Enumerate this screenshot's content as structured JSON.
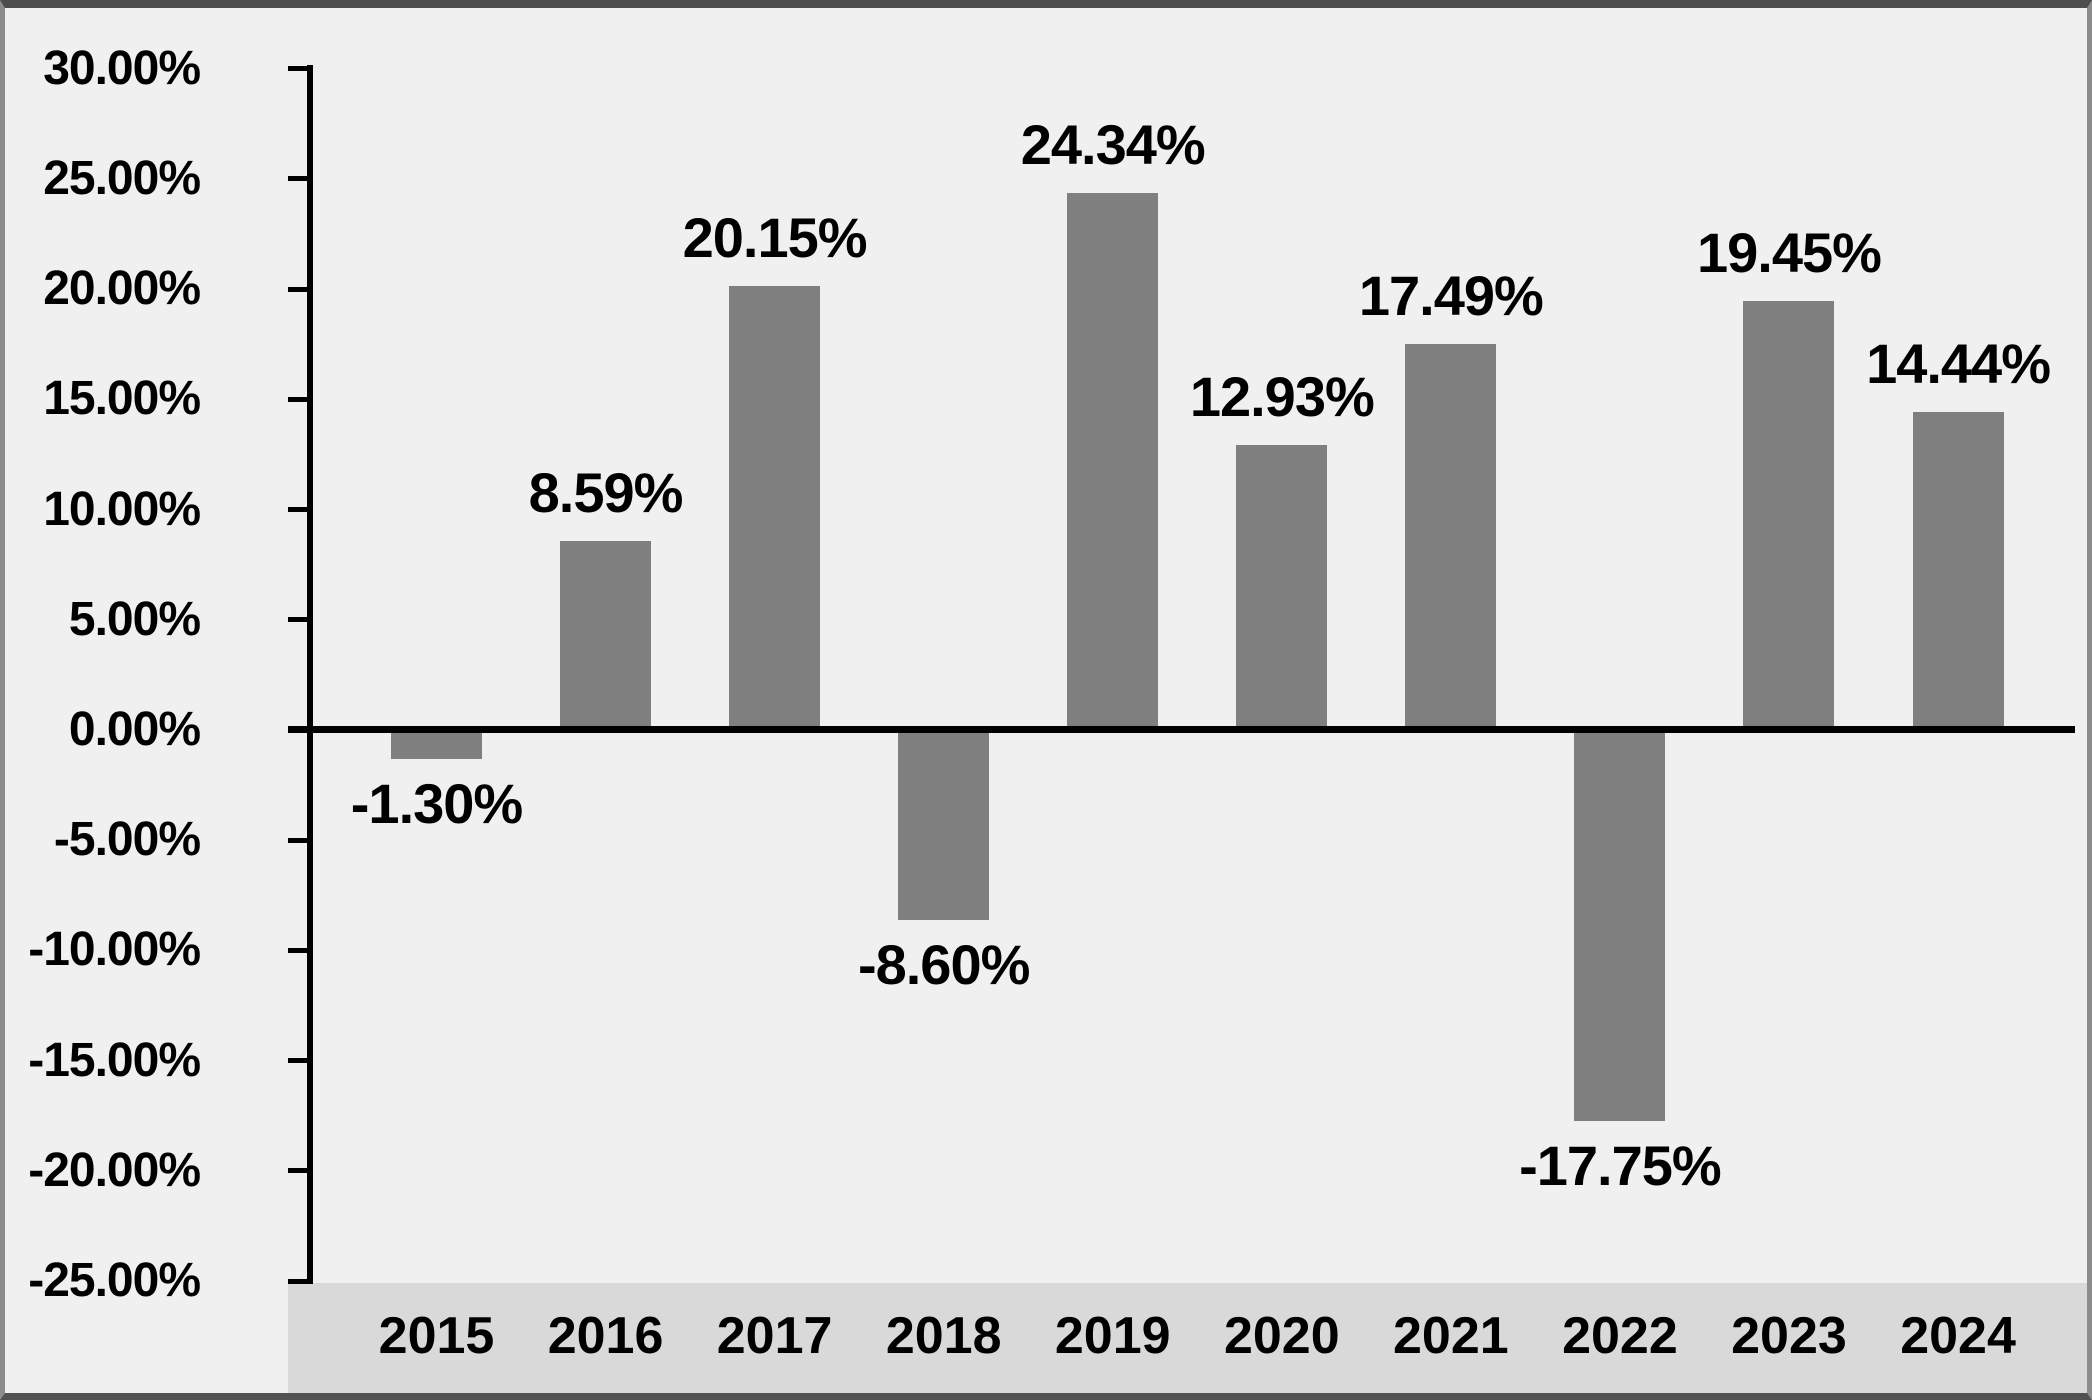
{
  "chart_data": {
    "type": "bar",
    "title": "",
    "xlabel": "",
    "ylabel": "",
    "grid": false,
    "legend": null,
    "categories": [
      "2015",
      "2016",
      "2017",
      "2018",
      "2019",
      "2020",
      "2021",
      "2022",
      "2023",
      "2024"
    ],
    "values": [
      -1.3,
      8.59,
      20.15,
      -8.6,
      24.34,
      12.93,
      17.49,
      -17.75,
      19.45,
      14.44
    ],
    "data_labels": [
      "-1.30%",
      "8.59%",
      "20.15%",
      "-8.60%",
      "24.34%",
      "12.93%",
      "17.49%",
      "-17.75%",
      "19.45%",
      "14.44%"
    ],
    "y_axis": {
      "min": -25,
      "max": 30,
      "step": 5,
      "tick_labels": [
        "30.00%",
        "25.00%",
        "20.00%",
        "15.00%",
        "10.00%",
        "5.00%",
        "0.00%",
        "-5.00%",
        "-10.00%",
        "-15.00%",
        "-20.00%",
        "-25.00%"
      ]
    },
    "colors": {
      "bar": "#7f7f7f",
      "plot_background": "#f0f0f1",
      "x_band": "#d9d9d9",
      "axis": "#000000",
      "text": "#000000"
    }
  }
}
